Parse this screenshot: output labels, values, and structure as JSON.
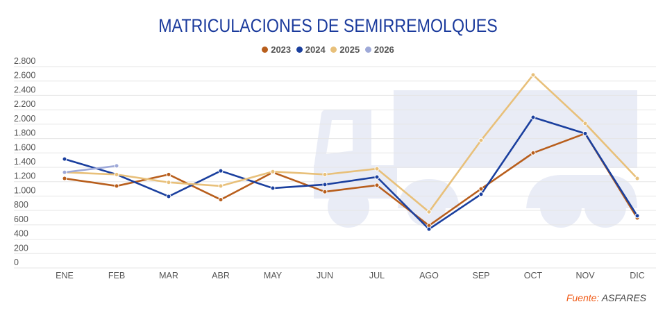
{
  "chart_data": {
    "type": "line",
    "title": "MATRICULACIONES DE SEMIRREMOLQUES",
    "xlabel": "",
    "ylabel": "",
    "categories": [
      "ENE",
      "FEB",
      "MAR",
      "ABR",
      "MAY",
      "JUN",
      "JUL",
      "AGO",
      "SEP",
      "OCT",
      "NOV",
      "DIC"
    ],
    "ylim": [
      0,
      2800
    ],
    "yticks": [
      0,
      200,
      400,
      600,
      800,
      1000,
      1200,
      1400,
      1600,
      1800,
      2000,
      2200,
      2400,
      2600,
      2800
    ],
    "ytick_labels": [
      "0",
      "200",
      "400",
      "600",
      "800",
      "1.000",
      "1.200",
      "1.400",
      "1.600",
      "1.800",
      "2.000",
      "2.200",
      "2.400",
      "2.600",
      "2.800"
    ],
    "grid": true,
    "legend_position": "top-center",
    "series": [
      {
        "name": "2023",
        "color": "#b85e1c",
        "values": [
          1245,
          1140,
          1300,
          950,
          1330,
          1060,
          1150,
          590,
          1100,
          1600,
          1870,
          695
        ]
      },
      {
        "name": "2024",
        "color": "#1a3f9e",
        "values": [
          1515,
          1300,
          995,
          1350,
          1110,
          1160,
          1265,
          540,
          1025,
          2095,
          1870,
          725
        ]
      },
      {
        "name": "2025",
        "color": "#e8c07a",
        "values": [
          1330,
          1300,
          1190,
          1140,
          1340,
          1300,
          1380,
          780,
          1775,
          2685,
          2010,
          1245
        ]
      },
      {
        "name": "2026",
        "color": "#9ea9d8",
        "values": [
          1330,
          1420
        ]
      }
    ]
  },
  "source": {
    "label": "Fuente:",
    "value": "ASFARES"
  },
  "watermark": "truck-icon"
}
